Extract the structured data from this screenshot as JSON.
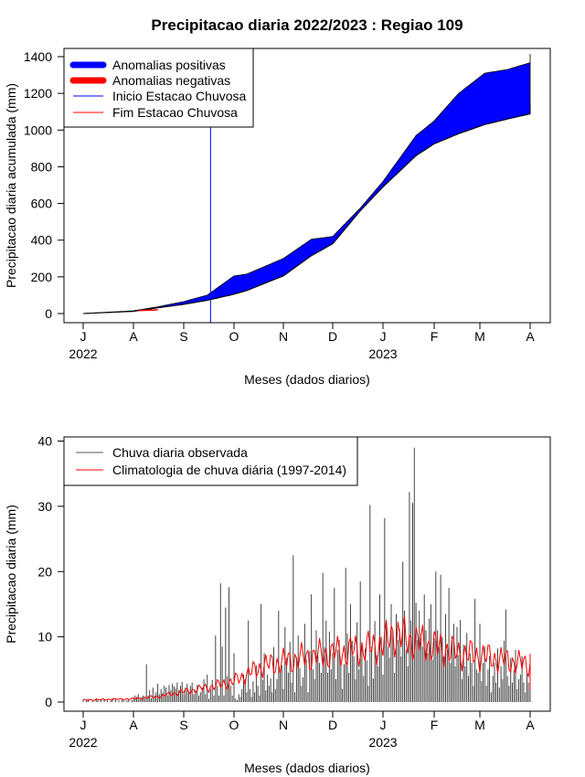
{
  "chart_data": [
    {
      "type": "area",
      "title": "Precipitacao diaria 2022/2023 : Regiao 109",
      "xlabel": "Meses (dados diarios)",
      "ylabel": "Precipitacao diaria acumulada (mm)",
      "ylim": [
        -50,
        1480
      ],
      "yticks": [
        0,
        200,
        400,
        600,
        800,
        1000,
        1200,
        1400
      ],
      "month_ticks": [
        "J",
        "A",
        "S",
        "O",
        "N",
        "D",
        "J",
        "F",
        "M",
        "A"
      ],
      "year_labels": [
        {
          "label": "2022",
          "month_index": 0
        },
        {
          "label": "2023",
          "month_index": 6
        }
      ],
      "legend_position": "top-left",
      "legend": [
        {
          "label": "Anomalias positivas",
          "color": "#0000ff",
          "style": "thick"
        },
        {
          "label": "Anomalias negativas",
          "color": "#ff0000",
          "style": "thick"
        },
        {
          "label": "Inicio Estacao Chuvosa",
          "color": "#0000ff",
          "style": "thin"
        },
        {
          "label": "Fim Estacao Chuvosa",
          "color": "#ff0000",
          "style": "thin"
        }
      ],
      "inicio_estacao_day": 78,
      "x_days": [
        0,
        31,
        45,
        62,
        76,
        92,
        100,
        123,
        140,
        153,
        170,
        184,
        204,
        215,
        230,
        246,
        260,
        275,
        291,
        303
      ],
      "observed_cumulative": [
        0,
        15,
        35,
        65,
        100,
        205,
        215,
        300,
        405,
        420,
        575,
        720,
        970,
        1050,
        1200,
        1310,
        1330,
        1370,
        1405,
        1415
      ],
      "climatology_cumulative": [
        0,
        12,
        30,
        50,
        72,
        105,
        125,
        205,
        315,
        380,
        560,
        690,
        860,
        925,
        980,
        1030,
        1060,
        1090,
        1130,
        1145
      ]
    },
    {
      "type": "bar",
      "xlabel": "Meses (dados diarios)",
      "ylabel": "Precipitacao diaria (mm)",
      "ylim": [
        -1.5,
        41
      ],
      "yticks": [
        0,
        10,
        20,
        30,
        40
      ],
      "month_ticks": [
        "J",
        "A",
        "S",
        "O",
        "N",
        "D",
        "J",
        "F",
        "M",
        "A"
      ],
      "year_labels": [
        {
          "label": "2022",
          "month_index": 0
        },
        {
          "label": "2023",
          "month_index": 6
        }
      ],
      "legend_position": "top-left",
      "legend": [
        {
          "label": "Chuva diaria observada",
          "color": "#555555"
        },
        {
          "label": "Climatologia de chuva diária (1997-2014)",
          "color": "#ff0000"
        }
      ],
      "series": [
        {
          "name": "Chuva diaria observada",
          "x_start_day": 0,
          "values": [
            0.4,
            0,
            0.3,
            0.5,
            0,
            0,
            0.2,
            0,
            0.6,
            0.3,
            0,
            0.4,
            0,
            0.5,
            0,
            0.3,
            0,
            0.2,
            0.6,
            0,
            0.4,
            0,
            0.3,
            0,
            0.5,
            0.2,
            0,
            0.3,
            0.4,
            0,
            0.3,
            0.5,
            1,
            0.8,
            1.2,
            0.5,
            0.8,
            1,
            0.6,
            5.8,
            1,
            1.8,
            0.6,
            2.2,
            1,
            1.5,
            2.8,
            1.2,
            2,
            1.4,
            2.5,
            2.2,
            1,
            2.6,
            1.8,
            2.8,
            2.4,
            2.1,
            3,
            1.8,
            2.5,
            3.1,
            1.2,
            2.2,
            2.8,
            1.5,
            2.5,
            3,
            1.2,
            1.8,
            2.6,
            1,
            1.5,
            2.2,
            3.5,
            1.2,
            4.2,
            0.5,
            2,
            3.4,
            1,
            10.2,
            2.5,
            1,
            18.2,
            8.5,
            1,
            14.5,
            4,
            17.6,
            2.5,
            1,
            7.5,
            0.5,
            0.3,
            1.2,
            0.8,
            2,
            4.2,
            3.5,
            1.5,
            12.5,
            2,
            0.8,
            3.2,
            1.5,
            5.6,
            2.5,
            1,
            15,
            3.4,
            7.5,
            1.8,
            4.2,
            2.5,
            3.6,
            1.5,
            8.4,
            2,
            3.5,
            14,
            4.8,
            5.6,
            2,
            11.5,
            6.8,
            4.5,
            9.2,
            3,
            22.5,
            1.5,
            6.8,
            10.2,
            5.2,
            2.5,
            3.8,
            12,
            6.5,
            1.5,
            7.8,
            16.5,
            5,
            3.5,
            11,
            7.2,
            6,
            4.5,
            19.8,
            8.4,
            12.5,
            4.5,
            10.8,
            5,
            7.5,
            17.5,
            3.5,
            8,
            9.5,
            5.8,
            2,
            5.8,
            20.6,
            10.5,
            4.5,
            15,
            9.4,
            7,
            3.5,
            12.2,
            5,
            18.5,
            9,
            4,
            8.2,
            6.4,
            2.5,
            30.2,
            8.5,
            3.6,
            12.4,
            7.2,
            5.5,
            16.5,
            10,
            4.2,
            28.2,
            12,
            8.5,
            6.8,
            15,
            10.8,
            4.5,
            13.5,
            9.5,
            11.2,
            7,
            21.5,
            14,
            8,
            5.5,
            32.2,
            12.5,
            30.5,
            39,
            15.2,
            9.5,
            14,
            10.5,
            8.5,
            16.5,
            11,
            7.5,
            12.8,
            15,
            6.5,
            9.8,
            20,
            11,
            8.4,
            19.5,
            10,
            7,
            13.5,
            8,
            17.5,
            6,
            9.5,
            12,
            5.5,
            11.5,
            7.2,
            12.6,
            3.5,
            8.8,
            5.5,
            10.6,
            4,
            7.5,
            6,
            2.5,
            15.8,
            5,
            4.5,
            12,
            3.2,
            6,
            8.5,
            2.5,
            5,
            7,
            1.5,
            4,
            6,
            3,
            8.2,
            2.2,
            5.5,
            3.5,
            9.4,
            14.2,
            4,
            2.5,
            6.8,
            3,
            5,
            8,
            2,
            3.5,
            4.2,
            7,
            3,
            1.5,
            4.5,
            3,
            2.2,
            5.5,
            1.5,
            4.8,
            3.5,
            5.6,
            0.5,
            3
          ]
        },
        {
          "name": "Climatologia de chuva diária (1997-2014)",
          "x_days": [
            0,
            15,
            31,
            45,
            60,
            62,
            78,
            92,
            110,
            123,
            140,
            153,
            170,
            184,
            190,
            200,
            215,
            230,
            246,
            260,
            275,
            291,
            303,
            314
          ],
          "values": [
            0.3,
            0.4,
            0.5,
            0.8,
            1.5,
            1.6,
            2.3,
            3.2,
            5.5,
            6.2,
            7,
            7.5,
            8,
            8.8,
            10.5,
            9.5,
            8.5,
            7.5,
            7,
            6.3,
            5.6,
            4.8,
            3.5,
            2.5
          ]
        }
      ]
    }
  ]
}
